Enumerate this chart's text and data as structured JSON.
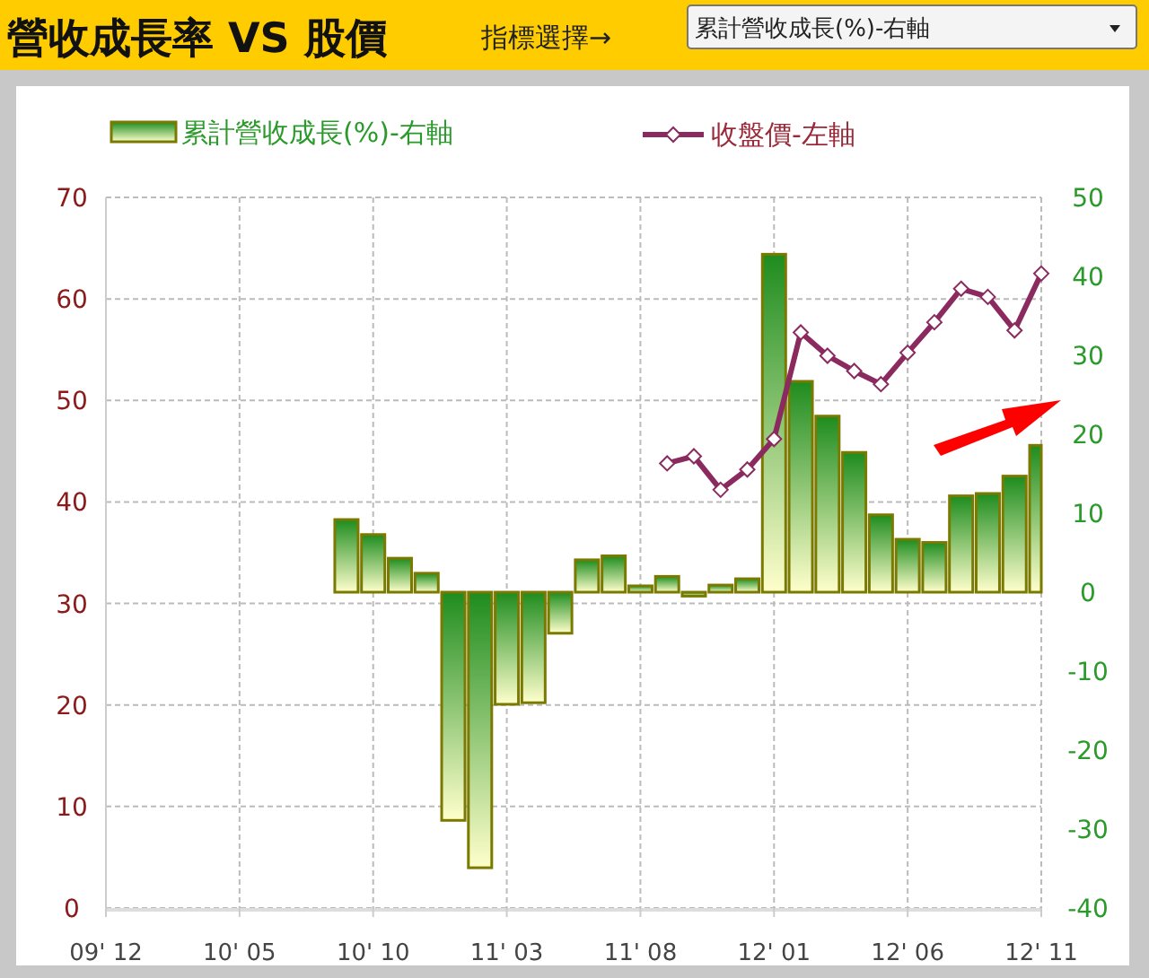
{
  "chart_data": {
    "type": "bar",
    "title": "營收成長率 VS 股價",
    "annotations": [
      "指標選擇→",
      "累計營收成長(%)-右軸"
    ],
    "categories": [
      "09' 12",
      null,
      null,
      null,
      null,
      "10' 05",
      null,
      null,
      null,
      null,
      "10' 10",
      null,
      null,
      null,
      null,
      "11' 03",
      null,
      null,
      null,
      null,
      "11' 08",
      null,
      null,
      null,
      null,
      "12' 01",
      null,
      null,
      null,
      null,
      "12' 06",
      null,
      null,
      null,
      null,
      "12' 11"
    ],
    "series": [
      {
        "name": "累計營收成長(%)-右軸",
        "axis": "y2",
        "color": "#7a7a00",
        "values": [
          null,
          null,
          null,
          null,
          null,
          null,
          null,
          null,
          null,
          9.2,
          7.3,
          4.3,
          2.4,
          -28.9,
          -34.9,
          -14.2,
          -14.0,
          -5.2,
          4.1,
          4.6,
          0.8,
          2.0,
          -0.5,
          0.9,
          1.7,
          42.8,
          26.7,
          22.3,
          17.7,
          9.8,
          6.7,
          6.3,
          12.2,
          12.5,
          14.7,
          18.6
        ]
      },
      {
        "name": "收盤價-左軸",
        "type": "line",
        "axis": "y",
        "color": "#8b2a5e",
        "marker": "diamond",
        "values": [
          null,
          null,
          null,
          null,
          null,
          null,
          null,
          null,
          null,
          null,
          null,
          null,
          null,
          null,
          null,
          null,
          null,
          null,
          null,
          null,
          null,
          43.8,
          44.5,
          41.2,
          43.2,
          46.2,
          56.7,
          54.4,
          52.9,
          51.6,
          54.7,
          57.7,
          61.0,
          60.2,
          56.9,
          62.5
        ]
      }
    ],
    "ylim": [
      0,
      70
    ],
    "yticks": [
      0,
      10,
      20,
      30,
      40,
      50,
      60,
      70
    ],
    "y2lim": [
      -40,
      50
    ],
    "y2ticks": [
      -40,
      -30,
      -20,
      -10,
      0,
      10,
      20,
      30,
      40,
      50
    ],
    "grid": true,
    "legend": "top"
  }
}
